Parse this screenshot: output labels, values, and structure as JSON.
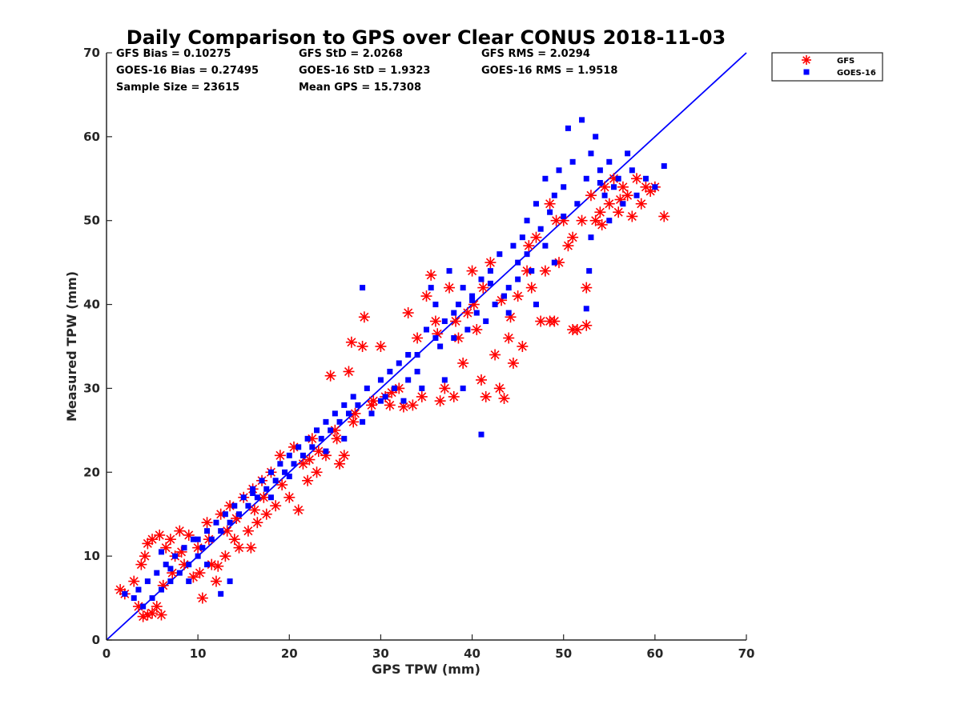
{
  "chart_data": {
    "type": "scatter",
    "title": "Daily Comparison to GPS over Clear CONUS 2018-11-03",
    "xlabel": "GPS TPW (mm)",
    "ylabel": "Measured TPW (mm)",
    "xlim": [
      0,
      70
    ],
    "ylim": [
      0,
      70
    ],
    "xticks": [
      "0",
      "10",
      "20",
      "30",
      "40",
      "50",
      "60",
      "70"
    ],
    "yticks": [
      "0",
      "10",
      "20",
      "30",
      "40",
      "50",
      "60",
      "70"
    ],
    "grid": false,
    "legend_position": "outside-top-right",
    "reference_line": {
      "name": "1:1 line",
      "color": "#0000ff",
      "x": [
        0,
        70
      ],
      "y": [
        0,
        70
      ]
    },
    "stats": [
      [
        "GFS Bias = 0.10275",
        "GFS StD = 2.0268",
        "GFS RMS = 2.0294"
      ],
      [
        "GOES-16 Bias = 0.27495",
        "GOES-16 StD = 1.9323",
        "GOES-16 RMS = 1.9518"
      ],
      [
        "Sample Size = 23615",
        "Mean GPS = 15.7308",
        ""
      ]
    ],
    "series": [
      {
        "name": "GFS",
        "marker": "asterisk",
        "color": "#ff0000",
        "points": [
          [
            1.5,
            6
          ],
          [
            2,
            5.5
          ],
          [
            3,
            7
          ],
          [
            3.5,
            4
          ],
          [
            4,
            2.8
          ],
          [
            4.5,
            3
          ],
          [
            5,
            3.2
          ],
          [
            5.5,
            4
          ],
          [
            6,
            3
          ],
          [
            3.8,
            9
          ],
          [
            4.2,
            10
          ],
          [
            4.5,
            11.5
          ],
          [
            5,
            12
          ],
          [
            5.8,
            12.5
          ],
          [
            6.5,
            11
          ],
          [
            7,
            12
          ],
          [
            7.5,
            10
          ],
          [
            8,
            13
          ],
          [
            8.5,
            9
          ],
          [
            9,
            12.5
          ],
          [
            10,
            11
          ],
          [
            10.5,
            5
          ],
          [
            11,
            14
          ],
          [
            11.5,
            9
          ],
          [
            12,
            7
          ],
          [
            12.5,
            15
          ],
          [
            13,
            10
          ],
          [
            13.5,
            16
          ],
          [
            14,
            12
          ],
          [
            14.5,
            11
          ],
          [
            15,
            17
          ],
          [
            15.5,
            13
          ],
          [
            16,
            18
          ],
          [
            16.5,
            14
          ],
          [
            17,
            19
          ],
          [
            17.5,
            15
          ],
          [
            18,
            20
          ],
          [
            18.5,
            16
          ],
          [
            19,
            22
          ],
          [
            20,
            17
          ],
          [
            20.5,
            23
          ],
          [
            21,
            15.5
          ],
          [
            21.5,
            21
          ],
          [
            22,
            19
          ],
          [
            22.5,
            24
          ],
          [
            23,
            20
          ],
          [
            24,
            22
          ],
          [
            24.5,
            31.5
          ],
          [
            25,
            25
          ],
          [
            25.5,
            21
          ],
          [
            26,
            22
          ],
          [
            26.5,
            32
          ],
          [
            26.8,
            35.5
          ],
          [
            27,
            26
          ],
          [
            28,
            35
          ],
          [
            28.2,
            38.5
          ],
          [
            29,
            28
          ],
          [
            30,
            35
          ],
          [
            30.5,
            29
          ],
          [
            31,
            28
          ],
          [
            32,
            30
          ],
          [
            32.5,
            27.8
          ],
          [
            33,
            39
          ],
          [
            33.5,
            28
          ],
          [
            34,
            36
          ],
          [
            34.5,
            29
          ],
          [
            35,
            41
          ],
          [
            35.5,
            43.5
          ],
          [
            36,
            38
          ],
          [
            36.5,
            28.5
          ],
          [
            37,
            30
          ],
          [
            37.5,
            42
          ],
          [
            38,
            29
          ],
          [
            38.5,
            36
          ],
          [
            39,
            33
          ],
          [
            39.5,
            39
          ],
          [
            40,
            44
          ],
          [
            40.5,
            37
          ],
          [
            41,
            31
          ],
          [
            41.5,
            29
          ],
          [
            42,
            45
          ],
          [
            42.5,
            34
          ],
          [
            43,
            30
          ],
          [
            43.5,
            28.8
          ],
          [
            44,
            36
          ],
          [
            44.5,
            33
          ],
          [
            45,
            41
          ],
          [
            45.5,
            35
          ],
          [
            46,
            44
          ],
          [
            46.5,
            42
          ],
          [
            47,
            48
          ],
          [
            47.5,
            38
          ],
          [
            48,
            44
          ],
          [
            48.5,
            52
          ],
          [
            49,
            38
          ],
          [
            49.5,
            45
          ],
          [
            50,
            50
          ],
          [
            50.5,
            47
          ],
          [
            51,
            48
          ],
          [
            51.5,
            37
          ],
          [
            52,
            50
          ],
          [
            52.5,
            42
          ],
          [
            53,
            53
          ],
          [
            53.5,
            50
          ],
          [
            54,
            51
          ],
          [
            54.5,
            54
          ],
          [
            55,
            52
          ],
          [
            55.5,
            55
          ],
          [
            56,
            51
          ],
          [
            56.5,
            54
          ],
          [
            57,
            53
          ],
          [
            57.5,
            50.5
          ],
          [
            58,
            55
          ],
          [
            58.5,
            52
          ],
          [
            59,
            54
          ],
          [
            59.5,
            53.5
          ],
          [
            60,
            54
          ],
          [
            61,
            50.5
          ],
          [
            52.5,
            37.5
          ],
          [
            51,
            37
          ],
          [
            48.5,
            38
          ],
          [
            15.8,
            11
          ],
          [
            9.5,
            7.5
          ],
          [
            7.2,
            8
          ],
          [
            6.2,
            6.5
          ],
          [
            12.2,
            8.8
          ],
          [
            13.2,
            13
          ],
          [
            16.2,
            15.5
          ],
          [
            19.2,
            18.5
          ],
          [
            8.2,
            10.5
          ],
          [
            10.2,
            8
          ],
          [
            14.2,
            14.5
          ],
          [
            11.2,
            12
          ],
          [
            17.2,
            17
          ],
          [
            22.2,
            21.5
          ],
          [
            23.2,
            22.5
          ],
          [
            25.2,
            24
          ],
          [
            27.2,
            27
          ],
          [
            29.2,
            28.5
          ],
          [
            31.2,
            29.5
          ],
          [
            36.2,
            36.5
          ],
          [
            38.2,
            38
          ],
          [
            40.2,
            40
          ],
          [
            41.2,
            42
          ],
          [
            43.2,
            40.5
          ],
          [
            44.2,
            38.5
          ],
          [
            46.2,
            47
          ],
          [
            49.2,
            50
          ],
          [
            54.2,
            49.5
          ],
          [
            56.2,
            52.5
          ]
        ]
      },
      {
        "name": "GOES-16",
        "marker": "square",
        "color": "#0000ff",
        "points": [
          [
            2,
            5.5
          ],
          [
            3,
            5
          ],
          [
            3.5,
            6
          ],
          [
            4,
            4
          ],
          [
            4.5,
            7
          ],
          [
            5,
            5
          ],
          [
            5.5,
            8
          ],
          [
            6,
            6
          ],
          [
            6.5,
            9
          ],
          [
            7,
            7
          ],
          [
            7.5,
            10
          ],
          [
            8,
            8
          ],
          [
            8.5,
            11
          ],
          [
            9,
            9
          ],
          [
            9.5,
            12
          ],
          [
            10,
            10
          ],
          [
            10.5,
            11
          ],
          [
            11,
            13
          ],
          [
            11.5,
            12
          ],
          [
            12,
            14
          ],
          [
            12.5,
            13
          ],
          [
            13,
            15
          ],
          [
            13.5,
            14
          ],
          [
            14,
            16
          ],
          [
            14.5,
            15
          ],
          [
            15,
            17
          ],
          [
            15.5,
            16
          ],
          [
            16,
            18
          ],
          [
            16.5,
            17
          ],
          [
            17,
            19
          ],
          [
            17.5,
            18
          ],
          [
            18,
            20
          ],
          [
            18.5,
            19
          ],
          [
            19,
            21
          ],
          [
            19.5,
            20
          ],
          [
            20,
            22
          ],
          [
            20.5,
            21
          ],
          [
            21,
            23
          ],
          [
            21.5,
            22
          ],
          [
            22,
            24
          ],
          [
            22.5,
            23
          ],
          [
            23,
            25
          ],
          [
            23.5,
            24
          ],
          [
            24,
            26
          ],
          [
            24.5,
            25
          ],
          [
            25,
            27
          ],
          [
            25.5,
            26
          ],
          [
            26,
            28
          ],
          [
            26.5,
            27
          ],
          [
            27,
            29
          ],
          [
            27.5,
            28
          ],
          [
            28,
            42
          ],
          [
            28.5,
            30
          ],
          [
            29,
            27
          ],
          [
            30,
            31
          ],
          [
            30.5,
            29
          ],
          [
            31,
            32
          ],
          [
            31.5,
            30
          ],
          [
            32,
            33
          ],
          [
            33,
            31
          ],
          [
            34,
            34
          ],
          [
            34.5,
            30
          ],
          [
            35,
            37
          ],
          [
            35.5,
            42
          ],
          [
            36,
            40
          ],
          [
            36.5,
            35
          ],
          [
            37,
            38
          ],
          [
            37.5,
            44
          ],
          [
            38,
            36
          ],
          [
            38.5,
            40
          ],
          [
            39,
            42
          ],
          [
            39.5,
            37
          ],
          [
            40,
            41
          ],
          [
            40.5,
            39
          ],
          [
            41,
            43
          ],
          [
            41.5,
            38
          ],
          [
            42,
            44
          ],
          [
            42.5,
            40
          ],
          [
            43,
            46
          ],
          [
            43.5,
            41
          ],
          [
            44,
            39
          ],
          [
            44.5,
            47
          ],
          [
            45,
            45
          ],
          [
            45.5,
            48
          ],
          [
            46,
            50
          ],
          [
            46.5,
            44
          ],
          [
            47,
            52
          ],
          [
            47.5,
            49
          ],
          [
            48,
            55
          ],
          [
            48.5,
            51
          ],
          [
            49,
            53
          ],
          [
            49.5,
            56
          ],
          [
            50,
            54
          ],
          [
            50.5,
            61
          ],
          [
            51,
            57
          ],
          [
            51.5,
            52
          ],
          [
            52,
            62
          ],
          [
            52.5,
            55
          ],
          [
            53,
            58
          ],
          [
            53.5,
            60
          ],
          [
            54,
            56
          ],
          [
            54.5,
            53
          ],
          [
            55,
            57
          ],
          [
            55.5,
            54
          ],
          [
            56,
            55
          ],
          [
            56.5,
            52
          ],
          [
            57,
            58
          ],
          [
            57.5,
            56
          ],
          [
            58,
            53
          ],
          [
            59,
            55
          ],
          [
            60,
            54
          ],
          [
            61,
            56.5
          ],
          [
            52.5,
            39.5
          ],
          [
            52.8,
            44
          ],
          [
            45,
            43
          ],
          [
            41,
            24.5
          ],
          [
            39,
            30
          ],
          [
            37,
            31
          ],
          [
            33,
            34
          ],
          [
            32.5,
            28.5
          ],
          [
            12.5,
            5.5
          ],
          [
            13.5,
            7
          ],
          [
            11,
            9
          ],
          [
            7,
            8.5
          ],
          [
            6,
            10.5
          ],
          [
            10,
            12
          ],
          [
            9,
            7
          ],
          [
            16,
            17.5
          ],
          [
            18,
            17
          ],
          [
            20,
            19.5
          ],
          [
            24,
            22.5
          ],
          [
            26,
            24
          ],
          [
            28,
            26
          ],
          [
            30,
            28.5
          ],
          [
            34,
            32
          ],
          [
            36,
            36
          ],
          [
            38,
            39
          ],
          [
            40,
            40.5
          ],
          [
            42,
            42.5
          ],
          [
            44,
            42
          ],
          [
            46,
            46
          ],
          [
            48,
            47
          ],
          [
            50,
            50.5
          ],
          [
            54,
            54.5
          ],
          [
            55,
            50
          ],
          [
            53,
            48
          ],
          [
            49,
            45
          ],
          [
            47,
            40
          ]
        ]
      }
    ]
  }
}
